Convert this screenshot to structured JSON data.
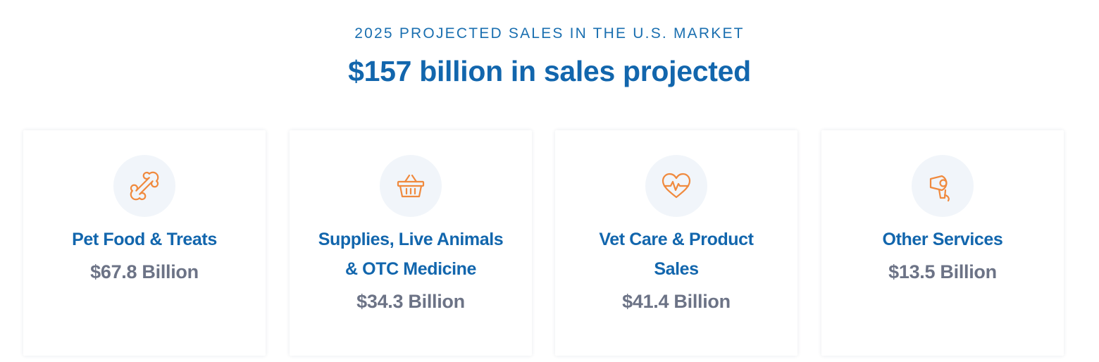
{
  "header": {
    "eyebrow": "2025 PROJECTED SALES IN THE U.S. MARKET",
    "headline": "$157 billion in sales projected"
  },
  "colors": {
    "brand_blue": "#1266ad",
    "value_gray": "#6c7386",
    "icon_orange": "#f08a3e",
    "icon_bg": "#f1f5fa"
  },
  "cards": [
    {
      "icon": "bone-icon",
      "title_lines": [
        "Pet Food & Treats"
      ],
      "value": "$67.8 Billion"
    },
    {
      "icon": "basket-icon",
      "title_lines": [
        "Supplies, Live Animals",
        "& OTC Medicine"
      ],
      "value": "$34.3 Billion"
    },
    {
      "icon": "heart-pulse-icon",
      "title_lines": [
        "Vet Care & Product",
        "Sales"
      ],
      "value": "$41.4 Billion"
    },
    {
      "icon": "hair-dryer-icon",
      "title_lines": [
        "Other Services"
      ],
      "value": "$13.5 Billion"
    }
  ]
}
